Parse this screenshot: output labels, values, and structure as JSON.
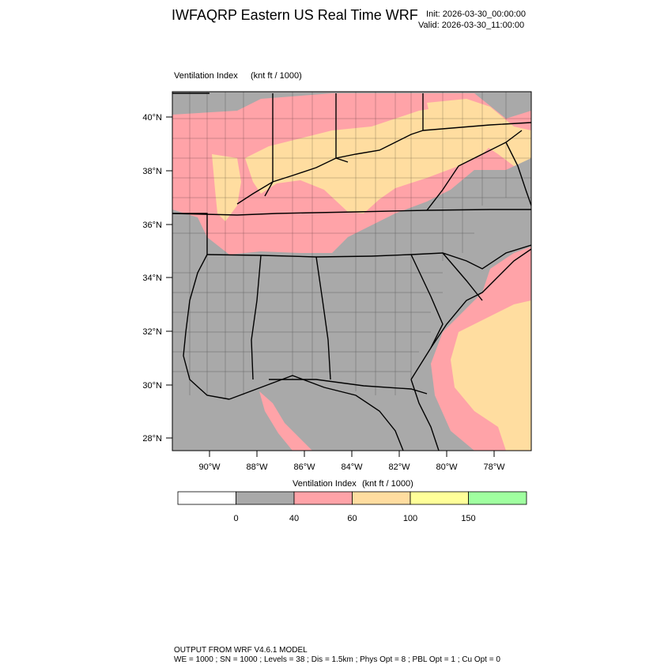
{
  "header": {
    "title": "IWFAQRP Eastern US Real Time WRF",
    "init": "Init: 2026-03-30_00:00:00",
    "valid": "Valid: 2026-03-30_11:00:00"
  },
  "map": {
    "field_label": "Ventilation Index",
    "field_units": "(knt ft / 1000)",
    "lat_labels": [
      "40°N",
      "38°N",
      "36°N",
      "34°N",
      "32°N",
      "30°N",
      "28°N"
    ],
    "lon_labels": [
      "90°W",
      "88°W",
      "86°W",
      "84°W",
      "82°W",
      "80°W",
      "78°W"
    ]
  },
  "colorbar": {
    "title": "Ventilation Index",
    "units": "(knt ft / 1000)",
    "boxes": [
      {
        "color": "#ffffff"
      },
      {
        "color": "#a9a9a9"
      },
      {
        "color": "#ffa3a8"
      },
      {
        "color": "#ffdda0"
      },
      {
        "color": "#ffff99"
      },
      {
        "color": "#a0ffa0"
      }
    ],
    "labels": [
      "0",
      "40",
      "60",
      "100",
      "150"
    ]
  },
  "colors": {
    "gray": "#a9a9a9",
    "pink": "#ffa3a8",
    "tan": "#ffdda0",
    "yellow": "#ffff99",
    "green": "#a0ffa0"
  },
  "footer": {
    "line1": "OUTPUT FROM WRF V4.6.1 MODEL",
    "line2": "WE = 1000 ; SN = 1000 ; Levels = 38 ; Dis = 1.5km ; Phys Opt = 8 ; PBL Opt = 1 ; Cu Opt = 0"
  }
}
